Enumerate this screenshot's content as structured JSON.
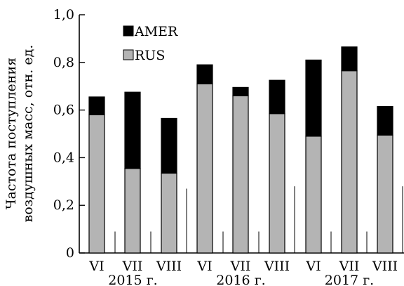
{
  "chart_data": {
    "type": "bar",
    "stacked": true,
    "title": "",
    "ylabel_lines": [
      "Частота поступления",
      "воздушных масс, отн. ед."
    ],
    "ylim": [
      0,
      1.0
    ],
    "yticks": [
      0,
      0.2,
      0.4,
      0.6,
      0.8,
      1.0
    ],
    "ytick_labels": [
      "0",
      "0,2",
      "0,4",
      "0,6",
      "0,8",
      "1,0"
    ],
    "groups": [
      {
        "year_label": "2015 г.",
        "categories": [
          "VI",
          "VII",
          "VIII"
        ]
      },
      {
        "year_label": "2016 г.",
        "categories": [
          "VI",
          "VII",
          "VIII"
        ]
      },
      {
        "year_label": "2017 г.",
        "categories": [
          "VI",
          "VII",
          "VIII"
        ]
      }
    ],
    "series": [
      {
        "name": "RUS",
        "color": "#b4b4b4",
        "values": [
          0.58,
          0.355,
          0.335,
          0.71,
          0.66,
          0.585,
          0.49,
          0.765,
          0.495
        ]
      },
      {
        "name": "AMER",
        "color": "#000000",
        "values": [
          0.075,
          0.32,
          0.23,
          0.08,
          0.035,
          0.14,
          0.32,
          0.1,
          0.12
        ]
      }
    ],
    "legend_position": "top-left",
    "grid": false
  }
}
